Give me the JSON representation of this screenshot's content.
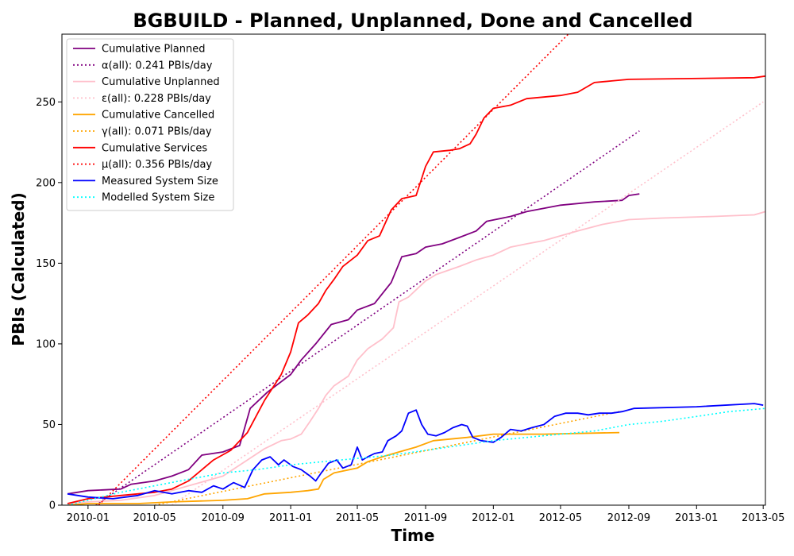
{
  "chart_data": {
    "type": "line",
    "title": "BGBUILD - Planned, Unplanned, Done  and Cancelled",
    "xlabel": "Time",
    "ylabel": "PBIs (Calculated)",
    "x_axis": {
      "type": "date",
      "range": [
        "2009-11-15",
        "2013-05-05"
      ],
      "ticks": [
        {
          "date": "2010-01-01",
          "label": "2010-01"
        },
        {
          "date": "2010-05-01",
          "label": "2010-05"
        },
        {
          "date": "2010-09-01",
          "label": "2010-09"
        },
        {
          "date": "2011-01-01",
          "label": "2011-01"
        },
        {
          "date": "2011-05-01",
          "label": "2011-05"
        },
        {
          "date": "2011-09-01",
          "label": "2011-09"
        },
        {
          "date": "2012-01-01",
          "label": "2012-01"
        },
        {
          "date": "2012-05-01",
          "label": "2012-05"
        },
        {
          "date": "2012-09-01",
          "label": "2012-09"
        },
        {
          "date": "2013-01-01",
          "label": "2013-01"
        },
        {
          "date": "2013-05-01",
          "label": "2013-05"
        }
      ]
    },
    "y_axis": {
      "range": [
        0,
        292
      ],
      "ticks": [
        0,
        50,
        100,
        150,
        200,
        250
      ]
    },
    "grid": false,
    "legend_position": "top-left",
    "series": [
      {
        "name": "Cumulative Planned",
        "color": "#800080",
        "style": "solid",
        "points": [
          [
            "2009-11-25",
            7
          ],
          [
            "2010-01-01",
            9
          ],
          [
            "2010-03-01",
            10
          ],
          [
            "2010-03-20",
            13
          ],
          [
            "2010-05-01",
            15
          ],
          [
            "2010-06-01",
            18
          ],
          [
            "2010-07-01",
            22
          ],
          [
            "2010-07-25",
            31
          ],
          [
            "2010-09-01",
            33
          ],
          [
            "2010-10-01",
            37
          ],
          [
            "2010-10-20",
            60
          ],
          [
            "2010-11-20",
            70
          ],
          [
            "2011-01-01",
            81
          ],
          [
            "2011-01-20",
            90
          ],
          [
            "2011-02-15",
            100
          ],
          [
            "2011-03-15",
            112
          ],
          [
            "2011-04-15",
            115
          ],
          [
            "2011-05-01",
            121
          ],
          [
            "2011-06-01",
            125
          ],
          [
            "2011-07-01",
            138
          ],
          [
            "2011-07-20",
            154
          ],
          [
            "2011-08-15",
            156
          ],
          [
            "2011-09-01",
            160
          ],
          [
            "2011-10-01",
            162
          ],
          [
            "2011-11-01",
            166
          ],
          [
            "2011-12-01",
            170
          ],
          [
            "2011-12-20",
            176
          ],
          [
            "2012-02-01",
            179
          ],
          [
            "2012-03-01",
            182
          ],
          [
            "2012-04-01",
            184
          ],
          [
            "2012-05-01",
            186
          ],
          [
            "2012-07-01",
            188
          ],
          [
            "2012-08-20",
            189
          ],
          [
            "2012-09-01",
            192
          ],
          [
            "2012-09-20",
            193
          ]
        ]
      },
      {
        "name": "α(all): 0.241 PBIs/day",
        "color": "#800080",
        "style": "dotted",
        "points": [
          [
            "2010-01-15",
            0
          ],
          [
            "2012-09-20",
            232
          ]
        ]
      },
      {
        "name": "Cumulative Unplanned",
        "color": "#ffc0cb",
        "style": "solid",
        "points": [
          [
            "2009-11-25",
            1
          ],
          [
            "2010-01-01",
            2
          ],
          [
            "2010-03-01",
            3
          ],
          [
            "2010-05-01",
            6
          ],
          [
            "2010-07-01",
            12
          ],
          [
            "2010-09-01",
            18
          ],
          [
            "2010-10-15",
            28
          ],
          [
            "2010-11-15",
            35
          ],
          [
            "2010-12-15",
            40
          ],
          [
            "2011-01-01",
            41
          ],
          [
            "2011-01-20",
            44
          ],
          [
            "2011-02-05",
            52
          ],
          [
            "2011-02-20",
            60
          ],
          [
            "2011-03-05",
            68
          ],
          [
            "2011-03-20",
            74
          ],
          [
            "2011-04-15",
            80
          ],
          [
            "2011-05-01",
            90
          ],
          [
            "2011-05-20",
            97
          ],
          [
            "2011-06-15",
            103
          ],
          [
            "2011-07-05",
            110
          ],
          [
            "2011-07-15",
            126
          ],
          [
            "2011-08-01",
            129
          ],
          [
            "2011-09-01",
            139
          ],
          [
            "2011-09-20",
            143
          ],
          [
            "2011-11-01",
            148
          ],
          [
            "2011-12-01",
            152
          ],
          [
            "2012-01-01",
            155
          ],
          [
            "2012-02-01",
            160
          ],
          [
            "2012-03-01",
            162
          ],
          [
            "2012-04-01",
            164
          ],
          [
            "2012-05-01",
            167
          ],
          [
            "2012-06-01",
            170
          ],
          [
            "2012-07-15",
            174
          ],
          [
            "2012-09-01",
            177
          ],
          [
            "2012-11-01",
            178
          ],
          [
            "2013-02-01",
            179
          ],
          [
            "2013-04-15",
            180
          ],
          [
            "2013-05-05",
            182
          ]
        ]
      },
      {
        "name": "ε(all): 0.228 PBIs/day",
        "color": "#ffc0cb",
        "style": "dotted",
        "points": [
          [
            "2010-06-01",
            0
          ],
          [
            "2013-05-01",
            250
          ]
        ]
      },
      {
        "name": "Cumulative Cancelled",
        "color": "#ffa500",
        "style": "solid",
        "points": [
          [
            "2009-11-25",
            0
          ],
          [
            "2010-01-01",
            1
          ],
          [
            "2010-04-01",
            1
          ],
          [
            "2010-06-01",
            2
          ],
          [
            "2010-09-01",
            3
          ],
          [
            "2010-10-15",
            4
          ],
          [
            "2010-11-15",
            7
          ],
          [
            "2011-01-01",
            8
          ],
          [
            "2011-02-01",
            9
          ],
          [
            "2011-02-20",
            10
          ],
          [
            "2011-03-01",
            16
          ],
          [
            "2011-03-20",
            20
          ],
          [
            "2011-05-01",
            23
          ],
          [
            "2011-05-20",
            27
          ],
          [
            "2011-06-15",
            30
          ],
          [
            "2011-07-15",
            33
          ],
          [
            "2011-08-15",
            36
          ],
          [
            "2011-09-15",
            40
          ],
          [
            "2011-11-15",
            42
          ],
          [
            "2012-01-01",
            44
          ],
          [
            "2012-04-01",
            44
          ],
          [
            "2012-08-15",
            45
          ]
        ]
      },
      {
        "name": "γ(all): 0.071 PBIs/day",
        "color": "#ffa500",
        "style": "dotted",
        "points": [
          [
            "2010-05-01",
            0
          ],
          [
            "2012-08-15",
            58
          ]
        ]
      },
      {
        "name": "Cumulative Services",
        "color": "#ff0000",
        "style": "solid",
        "points": [
          [
            "2009-11-25",
            1
          ],
          [
            "2010-01-01",
            4
          ],
          [
            "2010-03-01",
            6
          ],
          [
            "2010-05-01",
            8
          ],
          [
            "2010-06-01",
            10
          ],
          [
            "2010-07-01",
            15
          ],
          [
            "2010-08-15",
            28
          ],
          [
            "2010-09-15",
            34
          ],
          [
            "2010-10-15",
            45
          ],
          [
            "2010-11-15",
            65
          ],
          [
            "2010-12-15",
            81
          ],
          [
            "2011-01-01",
            95
          ],
          [
            "2011-01-15",
            113
          ],
          [
            "2011-02-01",
            118
          ],
          [
            "2011-02-20",
            125
          ],
          [
            "2011-03-05",
            133
          ],
          [
            "2011-03-20",
            140
          ],
          [
            "2011-04-05",
            148
          ],
          [
            "2011-05-01",
            155
          ],
          [
            "2011-05-20",
            164
          ],
          [
            "2011-06-10",
            167
          ],
          [
            "2011-07-01",
            183
          ],
          [
            "2011-07-20",
            190
          ],
          [
            "2011-08-15",
            192
          ],
          [
            "2011-09-01",
            210
          ],
          [
            "2011-09-15",
            219
          ],
          [
            "2011-10-15",
            220
          ],
          [
            "2011-11-01",
            221
          ],
          [
            "2011-11-20",
            224
          ],
          [
            "2011-12-01",
            230
          ],
          [
            "2011-12-15",
            240
          ],
          [
            "2012-01-01",
            246
          ],
          [
            "2012-02-01",
            248
          ],
          [
            "2012-03-01",
            252
          ],
          [
            "2012-05-01",
            254
          ],
          [
            "2012-06-01",
            256
          ],
          [
            "2012-07-01",
            262
          ],
          [
            "2012-08-01",
            263
          ],
          [
            "2012-09-01",
            264
          ],
          [
            "2013-04-15",
            265
          ],
          [
            "2013-05-05",
            266
          ]
        ]
      },
      {
        "name": "μ(all): 0.356 PBIs/day",
        "color": "#ff0000",
        "style": "dotted",
        "points": [
          [
            "2010-01-20",
            0
          ],
          [
            "2012-05-15",
            292
          ]
        ]
      },
      {
        "name": "Measured System Size",
        "color": "#0000ff",
        "style": "solid",
        "points": [
          [
            "2009-11-25",
            7
          ],
          [
            "2010-01-01",
            5
          ],
          [
            "2010-02-15",
            4
          ],
          [
            "2010-04-01",
            6
          ],
          [
            "2010-05-01",
            9
          ],
          [
            "2010-06-01",
            7
          ],
          [
            "2010-07-01",
            9
          ],
          [
            "2010-07-25",
            8
          ],
          [
            "2010-08-15",
            12
          ],
          [
            "2010-09-01",
            10
          ],
          [
            "2010-09-20",
            14
          ],
          [
            "2010-10-10",
            11
          ],
          [
            "2010-10-25",
            22
          ],
          [
            "2010-11-10",
            28
          ],
          [
            "2010-11-25",
            30
          ],
          [
            "2010-12-10",
            25
          ],
          [
            "2010-12-20",
            28
          ],
          [
            "2011-01-05",
            24
          ],
          [
            "2011-01-20",
            22
          ],
          [
            "2011-02-05",
            18
          ],
          [
            "2011-02-15",
            15
          ],
          [
            "2011-02-25",
            20
          ],
          [
            "2011-03-10",
            26
          ],
          [
            "2011-03-25",
            28
          ],
          [
            "2011-04-05",
            23
          ],
          [
            "2011-04-20",
            25
          ],
          [
            "2011-05-01",
            36
          ],
          [
            "2011-05-10",
            28
          ],
          [
            "2011-05-20",
            30
          ],
          [
            "2011-06-01",
            32
          ],
          [
            "2011-06-15",
            33
          ],
          [
            "2011-06-25",
            40
          ],
          [
            "2011-07-10",
            43
          ],
          [
            "2011-07-20",
            46
          ],
          [
            "2011-08-01",
            57
          ],
          [
            "2011-08-15",
            59
          ],
          [
            "2011-08-25",
            50
          ],
          [
            "2011-09-05",
            44
          ],
          [
            "2011-09-20",
            43
          ],
          [
            "2011-10-05",
            45
          ],
          [
            "2011-10-20",
            48
          ],
          [
            "2011-11-05",
            50
          ],
          [
            "2011-11-15",
            49
          ],
          [
            "2011-11-25",
            42
          ],
          [
            "2011-12-10",
            40
          ],
          [
            "2012-01-01",
            39
          ],
          [
            "2012-01-15",
            42
          ],
          [
            "2012-02-01",
            47
          ],
          [
            "2012-02-20",
            46
          ],
          [
            "2012-03-10",
            48
          ],
          [
            "2012-04-01",
            50
          ],
          [
            "2012-04-20",
            55
          ],
          [
            "2012-05-10",
            57
          ],
          [
            "2012-06-01",
            57
          ],
          [
            "2012-06-20",
            56
          ],
          [
            "2012-07-10",
            57
          ],
          [
            "2012-08-01",
            57
          ],
          [
            "2012-08-20",
            58
          ],
          [
            "2012-09-10",
            60
          ],
          [
            "2013-01-01",
            61
          ],
          [
            "2013-04-15",
            63
          ],
          [
            "2013-05-01",
            62
          ]
        ]
      },
      {
        "name": "Modelled System Size",
        "color": "#00ffff",
        "style": "dotted",
        "points": [
          [
            "2009-11-25",
            0
          ],
          [
            "2010-03-01",
            8
          ],
          [
            "2010-05-01",
            12
          ],
          [
            "2010-07-01",
            16
          ],
          [
            "2010-09-01",
            20
          ],
          [
            "2010-11-01",
            22
          ],
          [
            "2011-01-01",
            25
          ],
          [
            "2011-03-01",
            27
          ],
          [
            "2011-05-01",
            29
          ],
          [
            "2011-07-01",
            31
          ],
          [
            "2011-09-01",
            34
          ],
          [
            "2011-11-01",
            37
          ],
          [
            "2012-01-01",
            40
          ],
          [
            "2012-03-01",
            42
          ],
          [
            "2012-05-01",
            44
          ],
          [
            "2012-07-01",
            46
          ],
          [
            "2012-09-01",
            50
          ],
          [
            "2012-11-01",
            52
          ],
          [
            "2013-01-01",
            55
          ],
          [
            "2013-03-01",
            58
          ],
          [
            "2013-05-05",
            60
          ]
        ]
      }
    ]
  }
}
